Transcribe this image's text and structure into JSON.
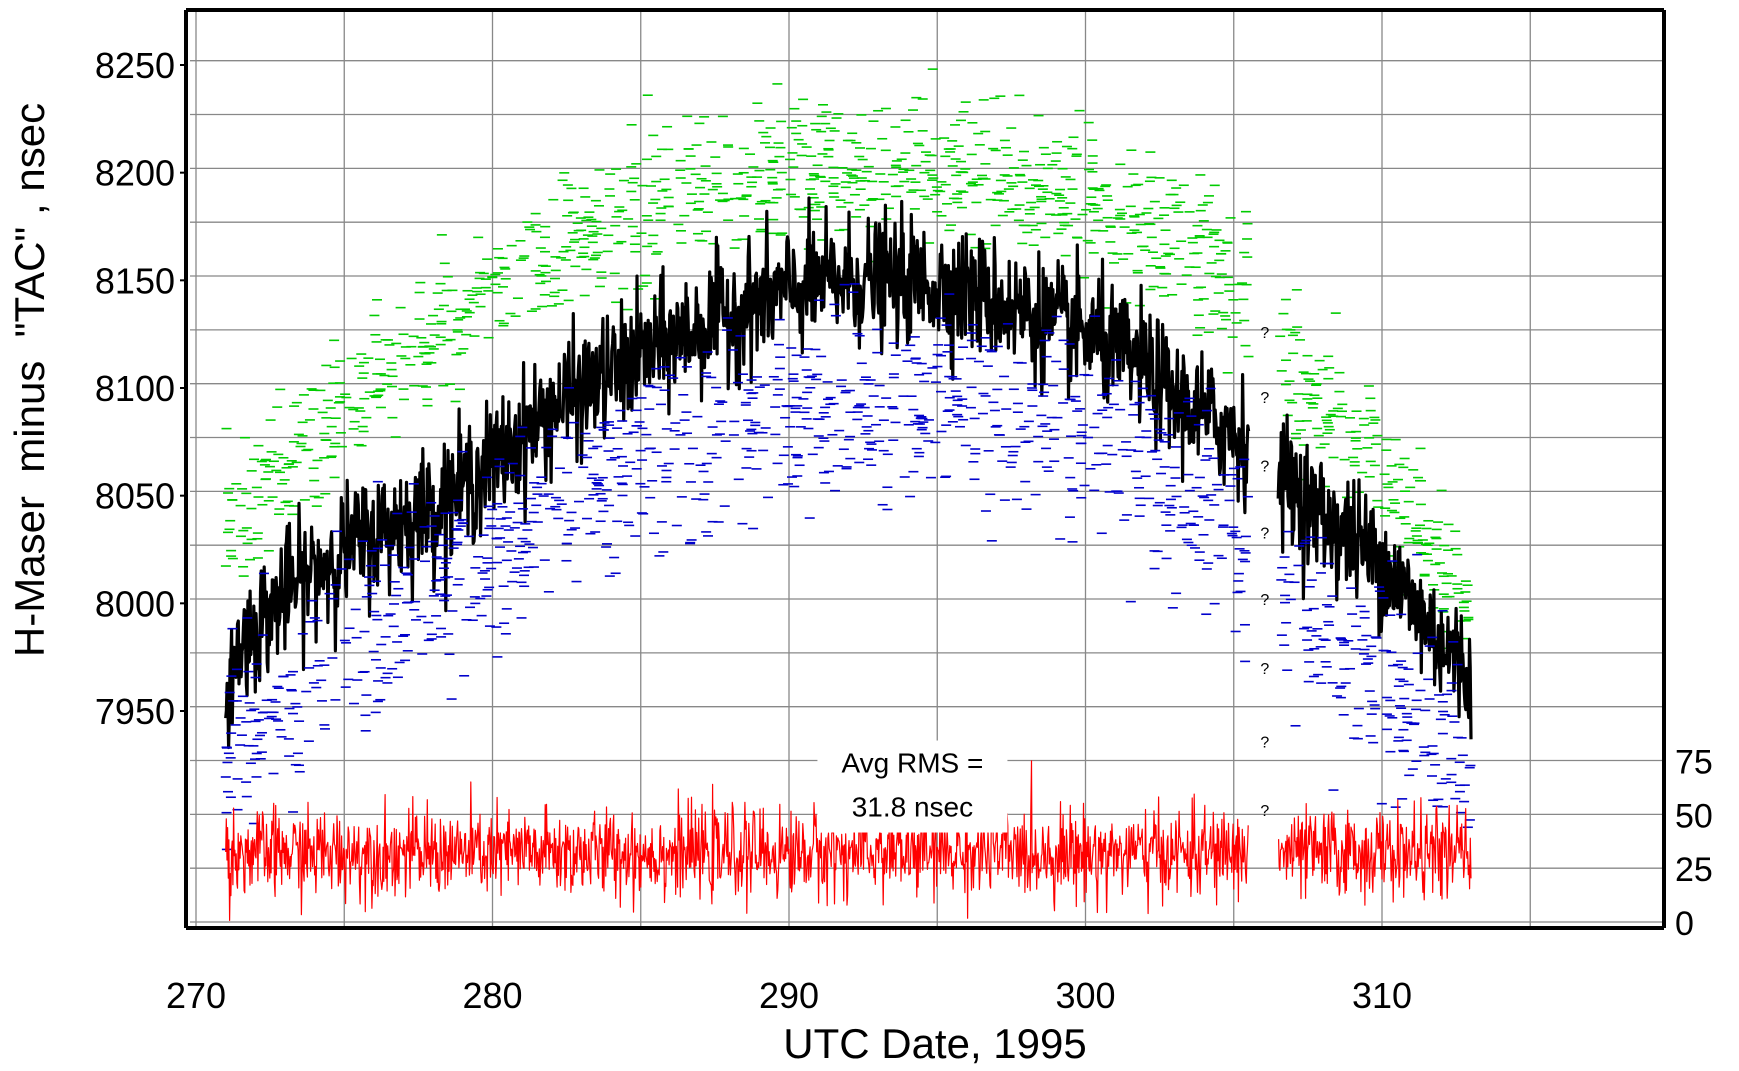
{
  "chart_data": {
    "type": "scatter",
    "title": "",
    "xlabel": "UTC Date, 1995",
    "ylabel": "H-Maser  minus  \"TAC\" , nsec",
    "xlim": [
      270,
      315
    ],
    "ylim_left": [
      7902,
      8280
    ],
    "left_ticks": [
      "7950",
      "8000",
      "8050",
      "8100",
      "8150",
      "8200",
      "8250"
    ],
    "left_tick_values": [
      7950,
      8000,
      8050,
      8100,
      8150,
      8200,
      8250
    ],
    "right_axis": {
      "ticks": [
        "0",
        "25",
        "50",
        "75"
      ],
      "tick_values": [
        0,
        25,
        50,
        75
      ],
      "maps_to_left": [
        7852,
        7877,
        7902,
        7927
      ]
    },
    "x_ticks": [
      "270",
      "280",
      "290",
      "300",
      "310"
    ],
    "x_tick_values": [
      270,
      280,
      290,
      300,
      310
    ],
    "grid": true,
    "annotation": {
      "lines": [
        "Avg RMS =",
        "31.8 nsec"
      ],
      "x": 294.5,
      "y": 7914
    },
    "gap": {
      "start": 305.5,
      "end": 306.5,
      "markers": [
        "?",
        "?",
        "?",
        "?",
        "?",
        "?",
        "?",
        "?"
      ]
    },
    "series": [
      {
        "role": "upper",
        "color": "#00cc00",
        "style": "dash-markers",
        "points_per_day": 30,
        "curve_x": [
          271,
          275,
          280,
          285,
          290,
          295,
          300,
          302,
          305.5,
          306.5,
          310,
          313
        ],
        "curve_y": [
          8035,
          8090,
          8145,
          8180,
          8200,
          8203,
          8190,
          8175,
          8145,
          8115,
          8060,
          7995
        ],
        "spread": 28
      },
      {
        "role": "mean",
        "color": "#000000",
        "style": "thick-line",
        "points_per_day": 40,
        "curve_x": [
          271,
          271.5,
          273,
          275,
          278,
          280,
          282,
          285,
          288,
          290,
          292,
          294,
          296,
          298,
          300,
          302,
          303,
          305.5,
          306.5,
          308,
          310,
          311,
          313
        ],
        "curve_y": [
          7960,
          7980,
          8005,
          8025,
          8045,
          8065,
          8090,
          8115,
          8135,
          8145,
          8150,
          8150,
          8145,
          8135,
          8125,
          8110,
          8095,
          8075,
          8060,
          8040,
          8020,
          8000,
          7965
        ],
        "noise": 14
      },
      {
        "role": "lower",
        "color": "#0000cc",
        "style": "dash-markers",
        "points_per_day": 30,
        "curve_x": [
          271,
          275,
          280,
          285,
          290,
          295,
          300,
          302,
          305.5,
          306.5,
          310,
          313
        ],
        "curve_y": [
          7930,
          7980,
          8025,
          8065,
          8090,
          8095,
          8080,
          8065,
          8030,
          8005,
          7965,
          7920
        ],
        "spread": 38
      },
      {
        "role": "rms",
        "color": "#ff0000",
        "style": "thin-line",
        "axis": "right",
        "points_per_day": 45,
        "curve_x": [
          271,
          313
        ],
        "curve_y": [
          7884,
          7884
        ],
        "noise": 10
      }
    ]
  }
}
